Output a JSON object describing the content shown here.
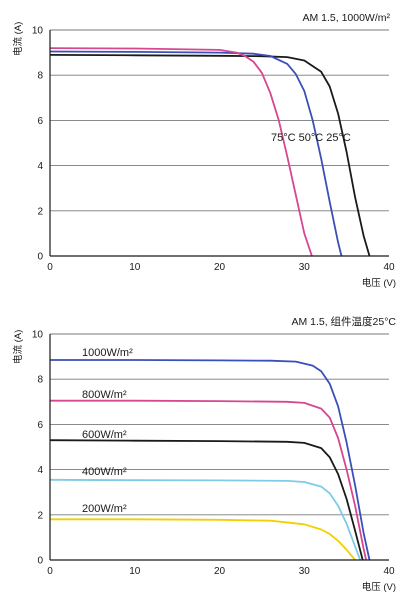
{
  "chart_data": [
    {
      "type": "line",
      "title": "AM 1.5, 1000W/m²",
      "xlabel": "电压 (V)",
      "ylabel": "电流 (A)",
      "xlim": [
        0,
        40
      ],
      "ylim": [
        0,
        10
      ],
      "xticks": [
        "0",
        "10",
        "20",
        "30",
        "40"
      ],
      "yticks": [
        "0",
        "2",
        "4",
        "6",
        "8",
        "10"
      ],
      "grid": "horizontal",
      "series_label_line": "75°C 50°C 25°C",
      "series": [
        {
          "name": "25°C",
          "color": "#1a1a1a",
          "x": [
            0,
            10,
            20,
            25,
            28,
            30,
            32,
            33,
            34,
            35,
            36,
            37,
            37.7
          ],
          "y": [
            8.9,
            8.88,
            8.86,
            8.84,
            8.8,
            8.65,
            8.15,
            7.5,
            6.3,
            4.6,
            2.6,
            0.9,
            0
          ]
        },
        {
          "name": "50°C",
          "color": "#3b4fb8",
          "x": [
            0,
            10,
            20,
            24,
            26,
            28,
            29,
            30,
            31,
            32,
            33,
            34,
            34.4
          ],
          "y": [
            9.05,
            9.03,
            9.0,
            8.95,
            8.85,
            8.5,
            8.05,
            7.3,
            6.0,
            4.3,
            2.4,
            0.6,
            0
          ]
        },
        {
          "name": "75°C",
          "color": "#d6478f",
          "x": [
            0,
            10,
            20,
            22,
            23,
            24,
            25,
            26,
            27,
            28,
            29,
            30,
            30.9
          ],
          "y": [
            9.2,
            9.18,
            9.12,
            9.0,
            8.85,
            8.6,
            8.1,
            7.2,
            6.0,
            4.4,
            2.7,
            1.0,
            0
          ]
        }
      ]
    },
    {
      "type": "line",
      "title": "AM 1.5, 组件温度25°C",
      "xlabel": "电压 (V)",
      "ylabel": "电流 (A)",
      "xlim": [
        0,
        40
      ],
      "ylim": [
        0,
        10
      ],
      "xticks": [
        "0",
        "10",
        "20",
        "30",
        "40"
      ],
      "yticks": [
        "0",
        "2",
        "4",
        "6",
        "8",
        "10"
      ],
      "grid": "horizontal",
      "series": [
        {
          "name": "1000W/m²",
          "color": "#3b4fb8",
          "x": [
            0,
            10,
            20,
            26,
            29,
            31,
            32,
            33,
            34,
            35,
            36,
            37,
            37.7
          ],
          "y": [
            8.85,
            8.85,
            8.83,
            8.82,
            8.78,
            8.6,
            8.35,
            7.8,
            6.8,
            5.2,
            3.3,
            1.2,
            0
          ]
        },
        {
          "name": "800W/m²",
          "color": "#d6478f",
          "x": [
            0,
            10,
            20,
            28,
            30,
            32,
            33,
            34,
            35,
            36,
            37,
            37.3
          ],
          "y": [
            7.05,
            7.05,
            7.03,
            7.0,
            6.95,
            6.7,
            6.3,
            5.4,
            4.0,
            2.4,
            0.5,
            0
          ]
        },
        {
          "name": "600W/m²",
          "color": "#1a1a1a",
          "x": [
            0,
            10,
            20,
            28,
            30,
            32,
            33,
            34,
            35,
            36,
            36.9
          ],
          "y": [
            5.3,
            5.28,
            5.26,
            5.23,
            5.18,
            4.95,
            4.55,
            3.8,
            2.7,
            1.3,
            0
          ]
        },
        {
          "name": "400W/m²",
          "color": "#7dcbe6",
          "x": [
            0,
            10,
            20,
            28,
            30,
            32,
            33,
            34,
            35,
            36,
            36.6
          ],
          "y": [
            3.55,
            3.53,
            3.52,
            3.5,
            3.45,
            3.25,
            2.95,
            2.4,
            1.6,
            0.6,
            0
          ]
        },
        {
          "name": "200W/m²",
          "color": "#f2d000",
          "x": [
            0,
            10,
            20,
            26,
            30,
            32,
            33,
            34,
            35,
            36
          ],
          "y": [
            1.8,
            1.8,
            1.78,
            1.74,
            1.58,
            1.35,
            1.15,
            0.85,
            0.45,
            0
          ]
        }
      ]
    }
  ]
}
